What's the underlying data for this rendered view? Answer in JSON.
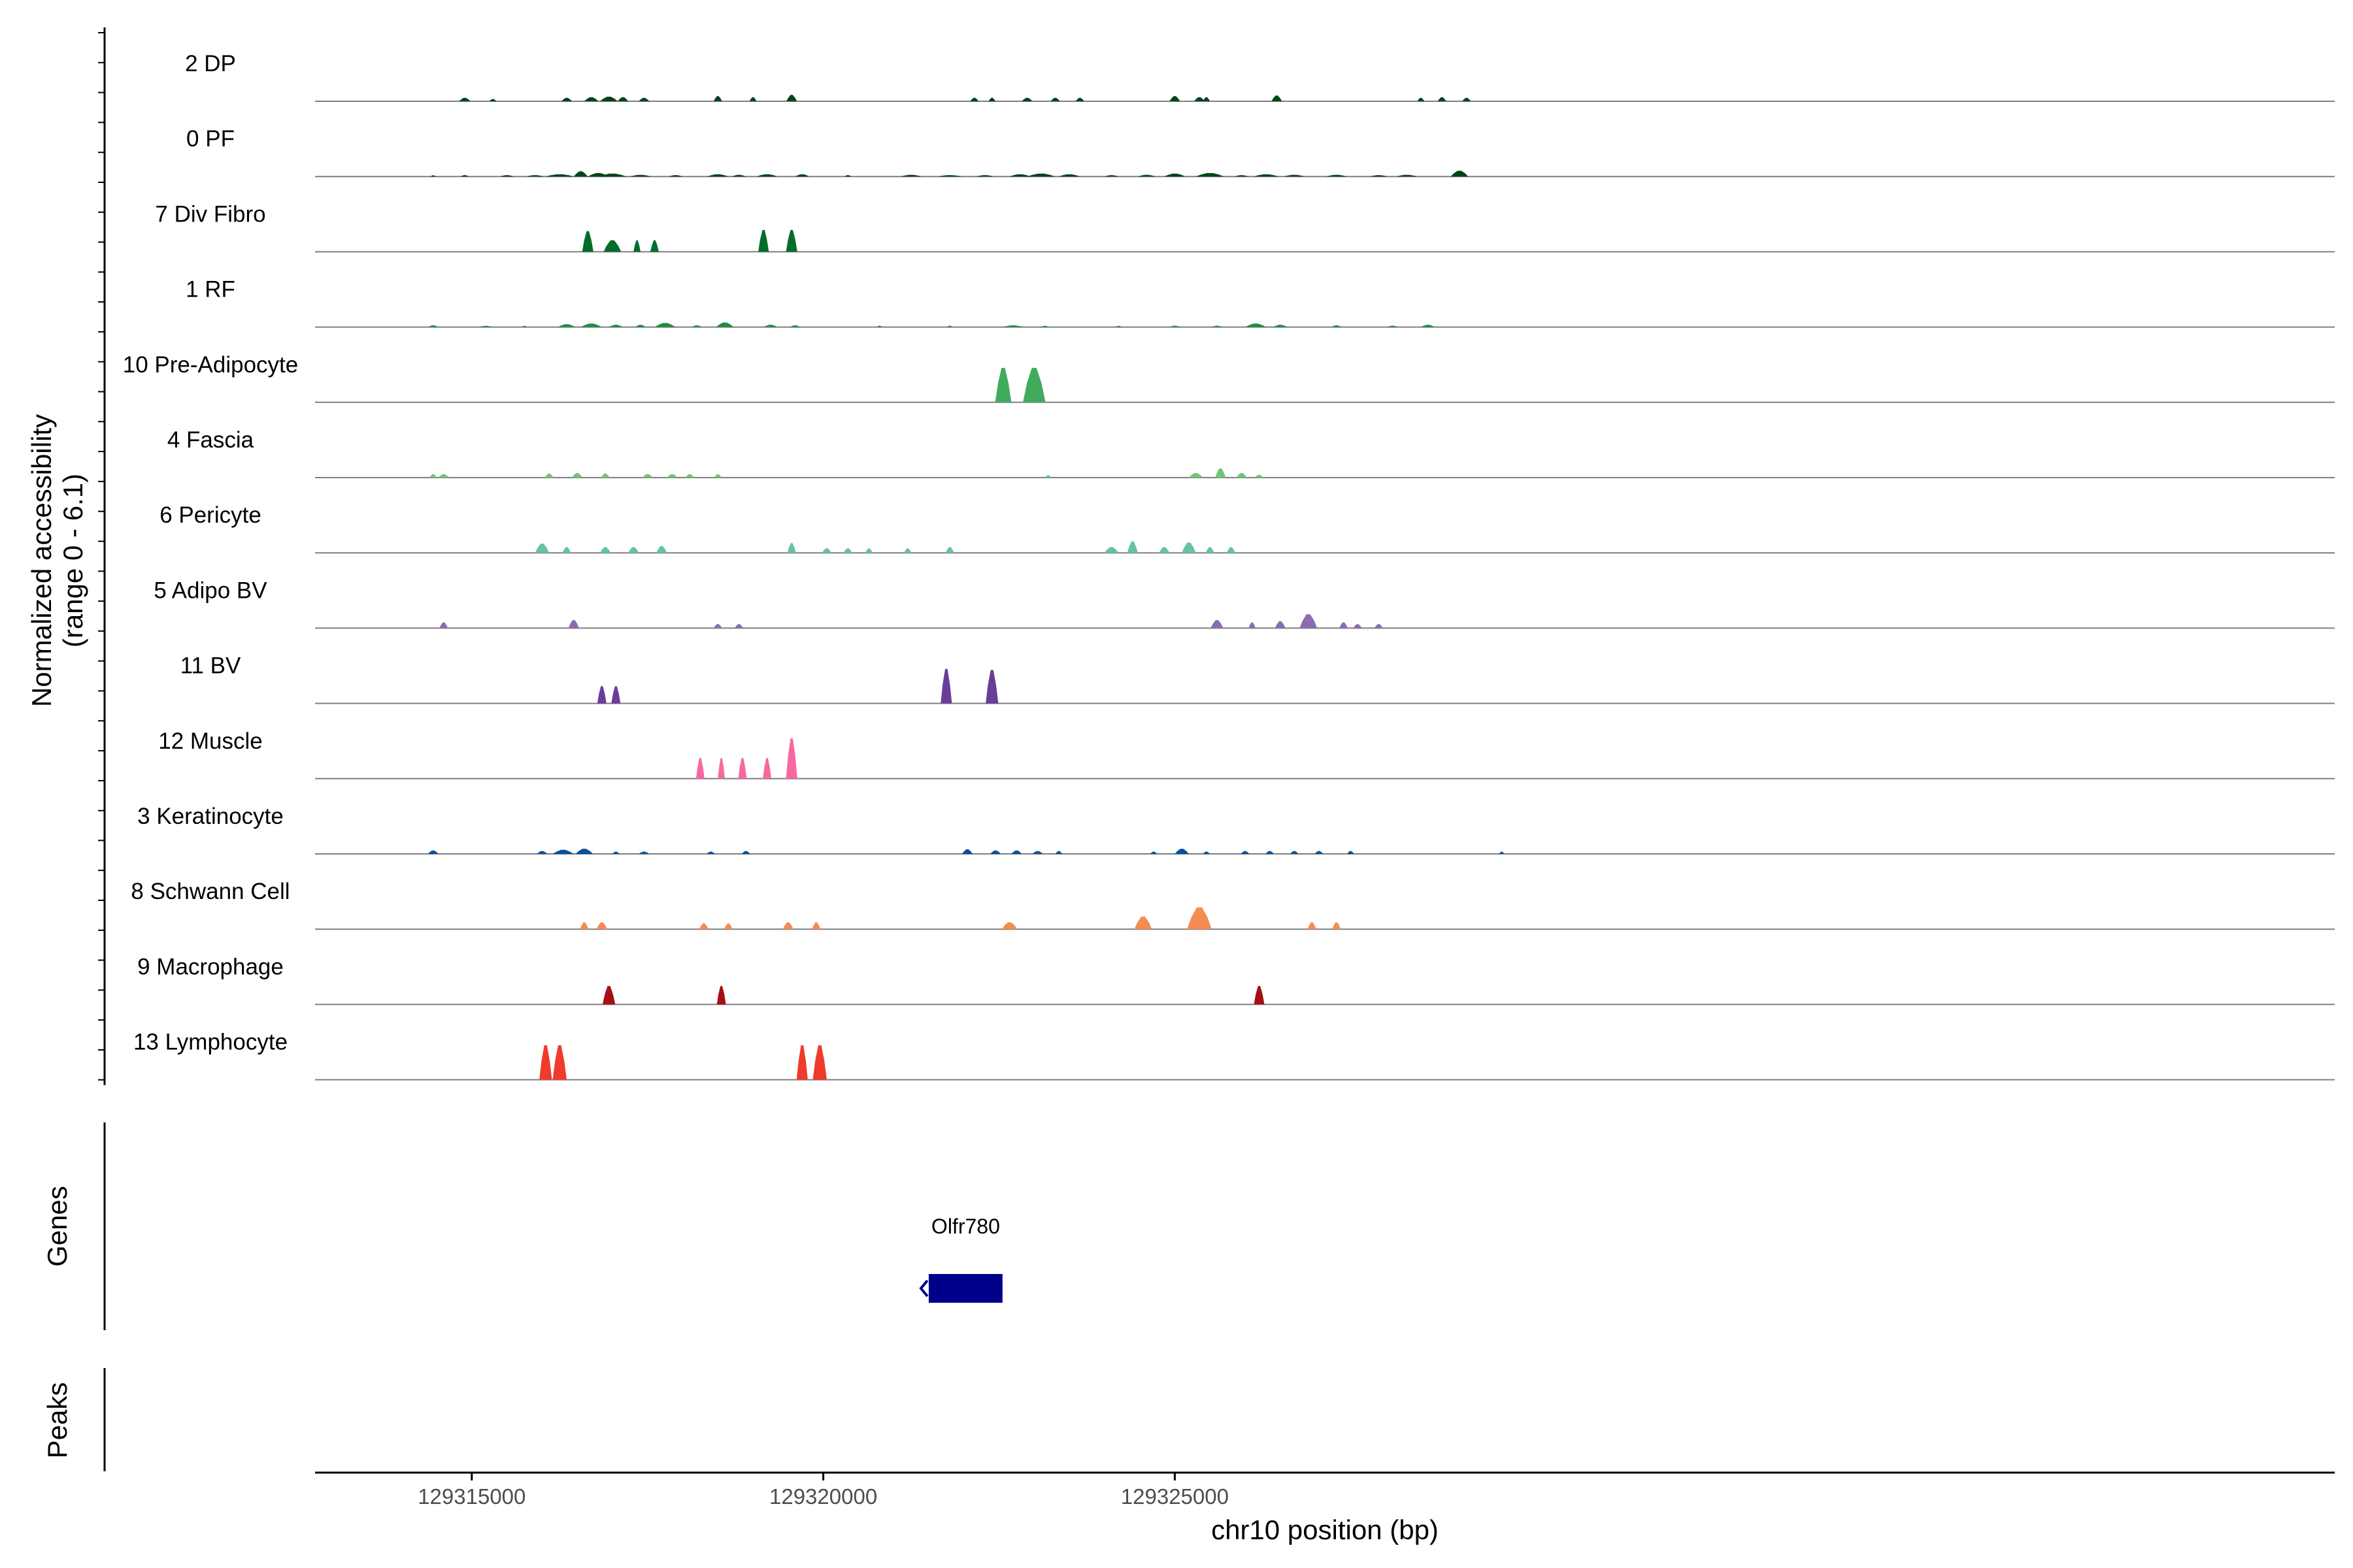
{
  "chart_data": {
    "type": "area",
    "title": "",
    "xlabel": "chr10 position (bp)",
    "ylabel_line1": "Normalized accessibility",
    "ylabel_line2": "(range 0 - 6.1)",
    "yrange": [
      0,
      6.1
    ],
    "xlim": [
      129312770,
      129341500
    ],
    "x_ticks": [
      {
        "value": 129315000,
        "label": "129315000"
      },
      {
        "value": 129320000,
        "label": "129320000"
      },
      {
        "value": 129325000,
        "label": "129325000"
      }
    ],
    "genes_label": "Genes",
    "peaks_label": "Peaks",
    "gene": {
      "name": "Olfr780",
      "start": 129321500,
      "end": 129322550,
      "strand": "-",
      "color": "#00008b"
    },
    "tracks": [
      {
        "name": "2 DP",
        "color": "#00441b",
        "peaks": [
          [
            129314900,
            160,
            0.3
          ],
          [
            129315300,
            100,
            0.2
          ],
          [
            129316350,
            150,
            0.3
          ],
          [
            129316700,
            200,
            0.35
          ],
          [
            129316950,
            250,
            0.4
          ],
          [
            129317150,
            150,
            0.35
          ],
          [
            129317450,
            150,
            0.3
          ],
          [
            129318500,
            120,
            0.45
          ],
          [
            129319000,
            100,
            0.35
          ],
          [
            129319550,
            150,
            0.55
          ],
          [
            129322150,
            120,
            0.3
          ],
          [
            129322400,
            100,
            0.3
          ],
          [
            129322900,
            150,
            0.3
          ],
          [
            129323300,
            130,
            0.3
          ],
          [
            129323650,
            120,
            0.3
          ],
          [
            129325000,
            150,
            0.45
          ],
          [
            129325350,
            150,
            0.35
          ],
          [
            129325450,
            100,
            0.35
          ],
          [
            129326450,
            150,
            0.5
          ],
          [
            129328500,
            100,
            0.3
          ],
          [
            129328800,
            120,
            0.35
          ],
          [
            129329150,
            120,
            0.3
          ]
        ]
      },
      {
        "name": "0 PF",
        "color": "#00441b",
        "peaks": [
          [
            129314450,
            80,
            0.1
          ],
          [
            129314900,
            120,
            0.12
          ],
          [
            129315500,
            200,
            0.12
          ],
          [
            129315900,
            250,
            0.12
          ],
          [
            129316250,
            400,
            0.2
          ],
          [
            129316550,
            200,
            0.45
          ],
          [
            129316800,
            300,
            0.3
          ],
          [
            129317000,
            400,
            0.25
          ],
          [
            129317400,
            300,
            0.15
          ],
          [
            129317900,
            200,
            0.12
          ],
          [
            129318500,
            300,
            0.2
          ],
          [
            129318800,
            200,
            0.15
          ],
          [
            129319200,
            300,
            0.2
          ],
          [
            129319700,
            200,
            0.2
          ],
          [
            129320350,
            100,
            0.12
          ],
          [
            129321250,
            300,
            0.15
          ],
          [
            129321800,
            350,
            0.12
          ],
          [
            129322300,
            250,
            0.12
          ],
          [
            129322800,
            300,
            0.2
          ],
          [
            129323100,
            400,
            0.25
          ],
          [
            129323500,
            300,
            0.2
          ],
          [
            129324100,
            200,
            0.12
          ],
          [
            129324600,
            250,
            0.15
          ],
          [
            129325000,
            300,
            0.25
          ],
          [
            129325500,
            400,
            0.3
          ],
          [
            129325950,
            200,
            0.12
          ],
          [
            129326300,
            350,
            0.2
          ],
          [
            129326700,
            300,
            0.15
          ],
          [
            129327300,
            300,
            0.15
          ],
          [
            129327900,
            250,
            0.12
          ],
          [
            129328300,
            300,
            0.15
          ],
          [
            129329050,
            250,
            0.5
          ]
        ]
      },
      {
        "name": "7 Div Fibro",
        "color": "#006d2c",
        "peaks": [
          [
            129316650,
            160,
            1.8
          ],
          [
            129317000,
            250,
            1.0
          ],
          [
            129317350,
            100,
            1.0
          ],
          [
            129317600,
            120,
            1.0
          ],
          [
            129319150,
            150,
            1.9
          ],
          [
            129319550,
            160,
            1.9
          ]
        ]
      },
      {
        "name": "1 RF",
        "color": "#238b45",
        "peaks": [
          [
            129314450,
            150,
            0.15
          ],
          [
            129315200,
            200,
            0.1
          ],
          [
            129315750,
            80,
            0.1
          ],
          [
            129316350,
            250,
            0.25
          ],
          [
            129316700,
            300,
            0.3
          ],
          [
            129317050,
            200,
            0.2
          ],
          [
            129317400,
            150,
            0.2
          ],
          [
            129317750,
            300,
            0.35
          ],
          [
            129318200,
            150,
            0.15
          ],
          [
            129318600,
            250,
            0.4
          ],
          [
            129319250,
            200,
            0.2
          ],
          [
            129319600,
            150,
            0.15
          ],
          [
            129320800,
            80,
            0.12
          ],
          [
            129321800,
            80,
            0.12
          ],
          [
            129322700,
            300,
            0.15
          ],
          [
            129323150,
            120,
            0.1
          ],
          [
            129324200,
            100,
            0.1
          ],
          [
            129325000,
            150,
            0.12
          ],
          [
            129325600,
            150,
            0.12
          ],
          [
            129326150,
            300,
            0.3
          ],
          [
            129326500,
            200,
            0.2
          ],
          [
            129327300,
            150,
            0.15
          ],
          [
            129328100,
            150,
            0.12
          ],
          [
            129328600,
            200,
            0.2
          ]
        ]
      },
      {
        "name": "10 Pre-Adipocyte",
        "color": "#41ab5d",
        "peaks": [
          [
            129322560,
            230,
            3.0
          ],
          [
            129323000,
            320,
            3.0
          ]
        ]
      },
      {
        "name": "4 Fascia",
        "color": "#74c476",
        "peaks": [
          [
            129314450,
            100,
            0.3
          ],
          [
            129314600,
            150,
            0.3
          ],
          [
            129316100,
            120,
            0.35
          ],
          [
            129316500,
            150,
            0.4
          ],
          [
            129316900,
            120,
            0.35
          ],
          [
            129317500,
            150,
            0.3
          ],
          [
            129317850,
            150,
            0.3
          ],
          [
            129318100,
            120,
            0.3
          ],
          [
            129318500,
            100,
            0.3
          ],
          [
            129323200,
            100,
            0.2
          ],
          [
            129325300,
            200,
            0.4
          ],
          [
            129325650,
            150,
            0.8
          ],
          [
            129325950,
            150,
            0.4
          ],
          [
            129326200,
            120,
            0.25
          ]
        ]
      },
      {
        "name": "6 Pericyte",
        "color": "#66c2a4",
        "peaks": [
          [
            129316000,
            200,
            0.8
          ],
          [
            129316350,
            120,
            0.5
          ],
          [
            129316900,
            150,
            0.5
          ],
          [
            129317300,
            150,
            0.5
          ],
          [
            129317700,
            150,
            0.6
          ],
          [
            129319550,
            120,
            0.85
          ],
          [
            129320050,
            130,
            0.4
          ],
          [
            129320350,
            120,
            0.4
          ],
          [
            129320650,
            100,
            0.4
          ],
          [
            129321200,
            100,
            0.4
          ],
          [
            129321800,
            120,
            0.5
          ],
          [
            129324100,
            200,
            0.5
          ],
          [
            129324400,
            150,
            1.0
          ],
          [
            129324850,
            150,
            0.5
          ],
          [
            129325200,
            200,
            0.9
          ],
          [
            129325500,
            120,
            0.5
          ],
          [
            129325800,
            120,
            0.5
          ]
        ]
      },
      {
        "name": "5 Adipo BV",
        "color": "#8c6bb1",
        "peaks": [
          [
            129314600,
            120,
            0.5
          ],
          [
            129316450,
            150,
            0.7
          ],
          [
            129318500,
            120,
            0.35
          ],
          [
            129318800,
            120,
            0.35
          ],
          [
            129325600,
            180,
            0.7
          ],
          [
            129326100,
            100,
            0.5
          ],
          [
            129326500,
            150,
            0.6
          ],
          [
            129326900,
            250,
            1.2
          ],
          [
            129327400,
            120,
            0.5
          ],
          [
            129327600,
            120,
            0.35
          ],
          [
            129327900,
            120,
            0.35
          ]
        ]
      },
      {
        "name": "11 BV",
        "color": "#6a3d9a",
        "peaks": [
          [
            129316850,
            130,
            1.5
          ],
          [
            129317050,
            130,
            1.5
          ],
          [
            129321750,
            160,
            3.0
          ],
          [
            129322400,
            180,
            2.9
          ]
        ]
      },
      {
        "name": "12 Muscle",
        "color": "#f768a1",
        "peaks": [
          [
            129318250,
            120,
            1.8
          ],
          [
            129318550,
            100,
            1.8
          ],
          [
            129318850,
            120,
            1.8
          ],
          [
            129319200,
            120,
            1.8
          ],
          [
            129319550,
            160,
            3.5
          ]
        ]
      },
      {
        "name": "3 Keratinocyte",
        "color": "#08519c",
        "peaks": [
          [
            129314450,
            150,
            0.3
          ],
          [
            129316000,
            150,
            0.25
          ],
          [
            129316300,
            300,
            0.35
          ],
          [
            129316600,
            250,
            0.45
          ],
          [
            129317050,
            100,
            0.2
          ],
          [
            129317450,
            150,
            0.2
          ],
          [
            129318400,
            120,
            0.2
          ],
          [
            129318900,
            120,
            0.25
          ],
          [
            129322050,
            150,
            0.4
          ],
          [
            129322450,
            150,
            0.3
          ],
          [
            129322750,
            150,
            0.3
          ],
          [
            129323050,
            150,
            0.25
          ],
          [
            129323350,
            100,
            0.25
          ],
          [
            129324700,
            100,
            0.2
          ],
          [
            129325100,
            200,
            0.45
          ],
          [
            129325450,
            100,
            0.2
          ],
          [
            129326000,
            120,
            0.25
          ],
          [
            129326350,
            120,
            0.25
          ],
          [
            129326700,
            120,
            0.25
          ],
          [
            129327050,
            120,
            0.25
          ],
          [
            129327500,
            100,
            0.25
          ],
          [
            129329650,
            40,
            0.2
          ]
        ]
      },
      {
        "name": "8 Schwann Cell",
        "color": "#f48c53",
        "peaks": [
          [
            129316600,
            120,
            0.6
          ],
          [
            129316850,
            150,
            0.6
          ],
          [
            129318300,
            130,
            0.5
          ],
          [
            129318650,
            120,
            0.5
          ],
          [
            129319500,
            150,
            0.6
          ],
          [
            129319900,
            120,
            0.6
          ],
          [
            129322650,
            220,
            0.6
          ],
          [
            129324550,
            250,
            1.1
          ],
          [
            129325350,
            350,
            1.9
          ],
          [
            129326950,
            120,
            0.6
          ],
          [
            129327300,
            120,
            0.6
          ]
        ]
      },
      {
        "name": "9 Macrophage",
        "color": "#a50f15",
        "peaks": [
          [
            129316950,
            180,
            1.6
          ],
          [
            129318550,
            130,
            1.6
          ],
          [
            129326200,
            150,
            1.6
          ]
        ]
      },
      {
        "name": "13 Lymphocyte",
        "color": "#ef3b2c",
        "peaks": [
          [
            129316050,
            180,
            3.0
          ],
          [
            129316250,
            200,
            3.0
          ],
          [
            129319700,
            160,
            3.0
          ],
          [
            129319950,
            200,
            3.0
          ]
        ]
      }
    ]
  }
}
